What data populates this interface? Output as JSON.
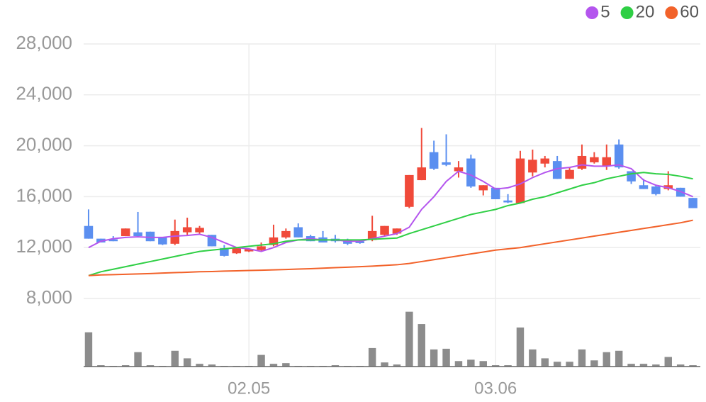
{
  "chart_data": {
    "type": "candlestick",
    "categories": [
      null,
      null,
      null,
      null,
      null,
      null,
      null,
      null,
      null,
      null,
      null,
      null,
      null,
      "02.05",
      null,
      null,
      null,
      null,
      null,
      null,
      null,
      null,
      null,
      null,
      null,
      null,
      null,
      null,
      null,
      null,
      null,
      null,
      null,
      "03.06",
      null,
      null,
      null,
      null,
      null,
      null,
      null,
      null,
      null,
      null,
      null,
      null,
      null,
      null,
      null,
      null
    ],
    "open": [
      13700,
      12700,
      12650,
      12900,
      13200,
      13250,
      12800,
      12300,
      13200,
      13200,
      13000,
      11950,
      11550,
      11700,
      11800,
      12200,
      12800,
      13600,
      12900,
      12800,
      12700,
      12600,
      12500,
      12600,
      13000,
      13100,
      15200,
      17300,
      19500,
      18700,
      18000,
      19000,
      16500,
      16700,
      15700,
      15500,
      17900,
      18600,
      18800,
      17400,
      18200,
      18700,
      18400,
      20100,
      18000,
      16900,
      16800,
      16600,
      16700,
      15900
    ],
    "high": [
      15000,
      12700,
      12900,
      13500,
      14800,
      13250,
      12800,
      14200,
      14350,
      13700,
      13000,
      12200,
      11950,
      11950,
      12400,
      13800,
      13500,
      13900,
      13000,
      13300,
      13000,
      12700,
      12600,
      14500,
      13700,
      13500,
      17700,
      21400,
      20400,
      20900,
      18800,
      19300,
      16900,
      16700,
      16200,
      19600,
      19700,
      19200,
      19200,
      18300,
      20100,
      19500,
      20100,
      20500,
      18000,
      17400,
      16900,
      18000,
      16700,
      15900
    ],
    "low": [
      12700,
      12400,
      12500,
      12900,
      12900,
      12500,
      12200,
      12200,
      13000,
      13100,
      12100,
      11300,
      11500,
      11650,
      11700,
      12100,
      12700,
      12800,
      12500,
      12400,
      12400,
      12200,
      12300,
      12500,
      12900,
      13000,
      15100,
      17300,
      18100,
      18400,
      17500,
      16700,
      16100,
      15800,
      15500,
      15500,
      17600,
      18300,
      17400,
      17400,
      18100,
      18600,
      18100,
      18200,
      17000,
      16600,
      16100,
      16500,
      16000,
      15100
    ],
    "close": [
      12700,
      12400,
      12500,
      13500,
      12900,
      12500,
      12250,
      13300,
      13600,
      13550,
      12100,
      11350,
      11950,
      11900,
      12100,
      12800,
      13300,
      12800,
      12500,
      12400,
      12500,
      12300,
      12350,
      13300,
      13700,
      13500,
      17700,
      18300,
      18200,
      18500,
      18300,
      16800,
      16900,
      15800,
      15550,
      19000,
      18900,
      19000,
      17400,
      18100,
      19200,
      19100,
      19100,
      18300,
      17200,
      16600,
      16200,
      16900,
      16000,
      15100
    ],
    "volume": [
      50,
      2,
      1,
      2,
      21,
      2,
      1,
      23,
      12,
      4,
      3,
      1,
      1,
      1,
      17,
      4,
      5,
      1,
      1,
      1,
      2,
      1,
      1,
      27,
      6,
      3,
      80,
      62,
      25,
      26,
      8,
      10,
      8,
      2,
      2,
      57,
      25,
      12,
      7,
      7,
      25,
      9,
      21,
      23,
      4,
      4,
      3,
      14,
      3,
      2
    ],
    "vlim": [
      0,
      90
    ],
    "up_color": "#f04a3a",
    "down_color": "#5b8ff0",
    "volume_color": "#8c8c8c",
    "ylim": [
      8000,
      28000
    ],
    "yticks": [
      {
        "value": 8000,
        "label": "8,000"
      },
      {
        "value": 12000,
        "label": "12,000"
      },
      {
        "value": 16000,
        "label": "16,000"
      },
      {
        "value": 20000,
        "label": "20,000"
      },
      {
        "value": 24000,
        "label": "24,000"
      },
      {
        "value": 28000,
        "label": "28,000"
      }
    ],
    "grid": true,
    "legend": "top-right",
    "series": [
      {
        "name": "5",
        "color": "#b455ee",
        "values": [
          12000,
          12500,
          12700,
          12800,
          12850,
          12800,
          12800,
          12900,
          12950,
          13050,
          12800,
          12400,
          12000,
          11900,
          11700,
          12000,
          12400,
          12600,
          12700,
          12600,
          12600,
          12500,
          12500,
          12700,
          12900,
          13100,
          13600,
          15000,
          16000,
          17200,
          18000,
          17700,
          17200,
          16600,
          16700,
          17000,
          17500,
          17900,
          18200,
          18300,
          18500,
          18400,
          18400,
          18500,
          18200,
          17300,
          16900,
          16700,
          16400,
          16000
        ]
      },
      {
        "name": "20",
        "color": "#2fcf45",
        "values": [
          9800,
          10100,
          10300,
          10500,
          10700,
          10900,
          11100,
          11300,
          11500,
          11700,
          11800,
          11900,
          12000,
          12100,
          12200,
          12300,
          12500,
          12600,
          12600,
          12600,
          12600,
          12600,
          12600,
          12650,
          12700,
          12750,
          13100,
          13400,
          13700,
          14000,
          14300,
          14600,
          14800,
          15000,
          15300,
          15500,
          15800,
          16000,
          16300,
          16600,
          16900,
          17100,
          17400,
          17600,
          17800,
          17900,
          17800,
          17750,
          17600,
          17400
        ]
      },
      {
        "name": "60",
        "color": "#f2622a",
        "values": [
          9800,
          9850,
          9870,
          9900,
          9930,
          9960,
          10000,
          10030,
          10060,
          10100,
          10120,
          10150,
          10170,
          10200,
          10220,
          10250,
          10280,
          10310,
          10340,
          10380,
          10420,
          10460,
          10500,
          10540,
          10600,
          10650,
          10750,
          10900,
          11050,
          11200,
          11350,
          11500,
          11650,
          11800,
          11900,
          12000,
          12150,
          12300,
          12450,
          12600,
          12750,
          12900,
          13050,
          13200,
          13350,
          13500,
          13650,
          13800,
          13950,
          14150
        ]
      }
    ]
  }
}
